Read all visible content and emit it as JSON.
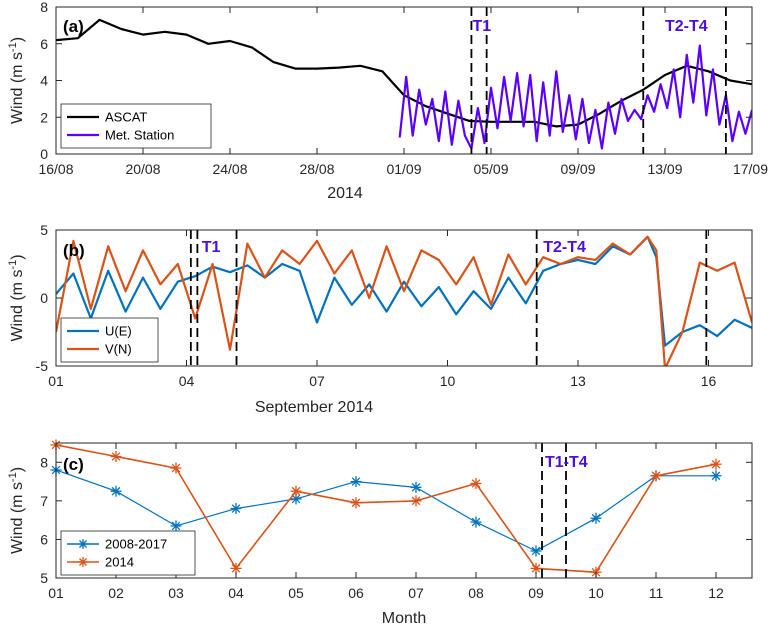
{
  "colors": {
    "black": "#000000",
    "purple": "#5a00ff",
    "blue": "#0072bd",
    "orange": "#d95319",
    "label": "#4b10e0"
  },
  "chart_data": [
    {
      "type": "line",
      "panel_label": "(a)",
      "ylabel": "Wind (m s",
      "ylabel_sup": "-1",
      "ylabel_close": ")",
      "xlabel": "2014",
      "xlim": [
        0,
        32
      ],
      "ylim": [
        0,
        8
      ],
      "yticks": [
        0,
        2,
        4,
        6,
        8
      ],
      "xticks": [
        {
          "x": 0,
          "label": "16/08"
        },
        {
          "x": 4,
          "label": "20/08"
        },
        {
          "x": 8,
          "label": "24/08"
        },
        {
          "x": 12,
          "label": "28/08"
        },
        {
          "x": 16,
          "label": "01/09"
        },
        {
          "x": 20,
          "label": "05/09"
        },
        {
          "x": 24,
          "label": "09/09"
        },
        {
          "x": 28,
          "label": "13/09"
        },
        {
          "x": 32,
          "label": "17/09"
        }
      ],
      "event_lines": [
        19.1,
        19.8,
        27.0,
        30.8
      ],
      "event_labels": [
        {
          "x": 19.15,
          "text": "T1"
        },
        {
          "x": 28.0,
          "text": "T2-T4"
        }
      ],
      "legend": {
        "placement": "bottom-left",
        "entries": [
          "ASCAT",
          "Met. Station"
        ]
      },
      "series": [
        {
          "name": "ASCAT",
          "x": [
            0,
            1,
            2,
            3,
            4,
            5,
            6,
            7,
            8,
            9,
            10,
            11,
            12,
            13,
            14,
            15,
            16,
            17,
            18,
            19,
            20,
            21,
            22,
            23,
            24,
            25,
            26,
            27,
            28,
            29,
            30,
            31,
            32
          ],
          "y": [
            6.2,
            6.3,
            7.3,
            6.8,
            6.5,
            6.65,
            6.5,
            6.0,
            6.15,
            5.8,
            5.0,
            4.65,
            4.65,
            4.7,
            4.8,
            4.5,
            3.2,
            2.6,
            2.2,
            1.8,
            1.75,
            1.75,
            1.75,
            1.5,
            1.6,
            2.2,
            2.9,
            3.5,
            4.3,
            4.8,
            4.5,
            4.0,
            3.8
          ]
        },
        {
          "name": "Met. Station",
          "x": [
            15.8,
            16.1,
            16.4,
            16.7,
            17.0,
            17.3,
            17.6,
            17.9,
            18.2,
            18.5,
            18.8,
            19.1,
            19.4,
            19.7,
            20.0,
            20.3,
            20.6,
            20.9,
            21.2,
            21.5,
            21.8,
            22.1,
            22.4,
            22.7,
            23.0,
            23.3,
            23.6,
            23.9,
            24.2,
            24.5,
            24.8,
            25.1,
            25.4,
            25.7,
            26.0,
            26.3,
            26.6,
            26.9,
            27.2,
            27.5,
            27.8,
            28.1,
            28.4,
            28.7,
            29.0,
            29.3,
            29.6,
            29.9,
            30.2,
            30.5,
            30.8,
            31.1,
            31.4,
            31.7,
            32.0
          ],
          "y": [
            0.9,
            4.2,
            1.0,
            3.5,
            1.6,
            3.0,
            0.7,
            3.4,
            0.5,
            2.9,
            1.0,
            0.3,
            2.5,
            0.6,
            3.6,
            1.4,
            4.2,
            1.8,
            4.4,
            1.5,
            4.3,
            0.7,
            3.9,
            1.0,
            4.5,
            1.2,
            3.2,
            0.8,
            3.0,
            0.6,
            2.4,
            0.3,
            2.8,
            1.1,
            3.0,
            1.8,
            2.4,
            1.9,
            3.2,
            2.3,
            3.8,
            2.5,
            4.6,
            2.0,
            5.4,
            2.8,
            5.9,
            2.1,
            4.6,
            1.6,
            3.2,
            0.7,
            2.3,
            1.1,
            2.4
          ]
        }
      ]
    },
    {
      "type": "line",
      "panel_label": "(b)",
      "ylabel": "Wind (m s",
      "ylabel_sup": "-1",
      "ylabel_close": ")",
      "xlabel": "September 2014",
      "xlim": [
        1,
        17
      ],
      "ylim": [
        -5,
        5
      ],
      "yticks": [
        -5,
        0,
        5
      ],
      "xticks": [
        {
          "x": 1,
          "label": "01"
        },
        {
          "x": 4,
          "label": "04"
        },
        {
          "x": 7,
          "label": "07"
        },
        {
          "x": 10,
          "label": "10"
        },
        {
          "x": 13,
          "label": "13"
        },
        {
          "x": 16,
          "label": "16"
        }
      ],
      "event_lines": [
        4.1,
        4.25,
        5.15,
        12.05,
        15.95
      ],
      "event_labels": [
        {
          "x": 4.35,
          "text": "T1"
        },
        {
          "x": 12.2,
          "text": "T2-T4"
        }
      ],
      "legend": {
        "placement": "bottom-left",
        "entries": [
          "U(E)",
          "V(N)"
        ]
      },
      "series": [
        {
          "name": "U(E)",
          "x": [
            1.0,
            1.4,
            1.8,
            2.2,
            2.6,
            3.0,
            3.4,
            3.8,
            4.2,
            4.6,
            5.0,
            5.4,
            5.8,
            6.2,
            6.6,
            7.0,
            7.4,
            7.8,
            8.2,
            8.6,
            9.0,
            9.4,
            9.8,
            10.2,
            10.6,
            11.0,
            11.4,
            11.8,
            12.2,
            12.6,
            13.0,
            13.4,
            13.8,
            14.2,
            14.6,
            14.8,
            15.0,
            15.4,
            15.8,
            16.2,
            16.6,
            17.0
          ],
          "y": [
            0.3,
            1.8,
            -1.5,
            2.0,
            -1.0,
            1.5,
            -0.8,
            1.2,
            1.6,
            2.3,
            1.9,
            2.4,
            1.5,
            2.5,
            2.0,
            -1.8,
            1.5,
            -0.5,
            1.0,
            -1.0,
            1.2,
            -0.6,
            0.8,
            -1.2,
            0.5,
            -0.8,
            1.5,
            -0.4,
            2.0,
            2.5,
            2.8,
            2.5,
            3.8,
            3.2,
            4.5,
            3.0,
            -3.5,
            -2.5,
            -2.0,
            -2.8,
            -1.6,
            -2.2
          ]
        },
        {
          "name": "V(N)",
          "x": [
            1.0,
            1.4,
            1.8,
            2.2,
            2.6,
            3.0,
            3.4,
            3.8,
            4.2,
            4.6,
            5.0,
            5.4,
            5.8,
            6.2,
            6.6,
            7.0,
            7.4,
            7.8,
            8.2,
            8.6,
            9.0,
            9.4,
            9.8,
            10.2,
            10.6,
            11.0,
            11.4,
            11.8,
            12.2,
            12.6,
            13.0,
            13.4,
            13.8,
            14.2,
            14.6,
            14.8,
            15.0,
            15.4,
            15.8,
            16.2,
            16.6,
            17.0
          ],
          "y": [
            -2.5,
            4.2,
            -0.8,
            3.8,
            0.5,
            3.5,
            1.0,
            2.5,
            -1.5,
            2.5,
            -3.8,
            4.0,
            1.5,
            3.5,
            2.5,
            4.2,
            1.8,
            3.5,
            0.0,
            3.8,
            0.5,
            3.5,
            2.8,
            1.0,
            3.0,
            -0.5,
            3.2,
            1.0,
            3.0,
            2.5,
            3.0,
            2.8,
            4.0,
            3.2,
            4.5,
            3.5,
            -5.2,
            -2.5,
            2.6,
            2.0,
            2.6,
            -1.8
          ]
        }
      ]
    },
    {
      "type": "line",
      "panel_label": "(c)",
      "ylabel": "Wind (m s",
      "ylabel_sup": "-1",
      "ylabel_close": ")",
      "xlabel": "Month",
      "xlim": [
        1,
        12.6
      ],
      "ylim": [
        5,
        8.5
      ],
      "yticks": [
        5,
        6,
        7,
        8
      ],
      "xticks": [
        {
          "x": 1,
          "label": "01"
        },
        {
          "x": 2,
          "label": "02"
        },
        {
          "x": 3,
          "label": "03"
        },
        {
          "x": 4,
          "label": "04"
        },
        {
          "x": 5,
          "label": "05"
        },
        {
          "x": 6,
          "label": "06"
        },
        {
          "x": 7,
          "label": "07"
        },
        {
          "x": 8,
          "label": "08"
        },
        {
          "x": 9,
          "label": "09"
        },
        {
          "x": 10,
          "label": "10"
        },
        {
          "x": 11,
          "label": "11"
        },
        {
          "x": 12,
          "label": "12"
        }
      ],
      "event_lines": [
        9.1,
        9.5
      ],
      "event_labels": [
        {
          "x": 9.15,
          "text": "T1-T4"
        }
      ],
      "legend": {
        "placement": "bottom-left",
        "entries": [
          "2008-2017",
          "2014"
        ]
      },
      "series": [
        {
          "name": "2008-2017",
          "x": [
            1,
            2,
            3,
            4,
            5,
            6,
            7,
            8,
            9,
            10,
            11,
            12
          ],
          "y": [
            7.8,
            7.25,
            6.35,
            6.8,
            7.05,
            7.5,
            7.35,
            6.45,
            5.7,
            6.55,
            7.65,
            7.65
          ]
        },
        {
          "name": "2014",
          "x": [
            1,
            2,
            3,
            4,
            5,
            6,
            7,
            8,
            9,
            10,
            11,
            12
          ],
          "y": [
            8.45,
            8.15,
            7.85,
            5.25,
            7.25,
            6.95,
            7.0,
            7.45,
            5.25,
            5.15,
            7.65,
            7.95
          ]
        }
      ]
    }
  ]
}
